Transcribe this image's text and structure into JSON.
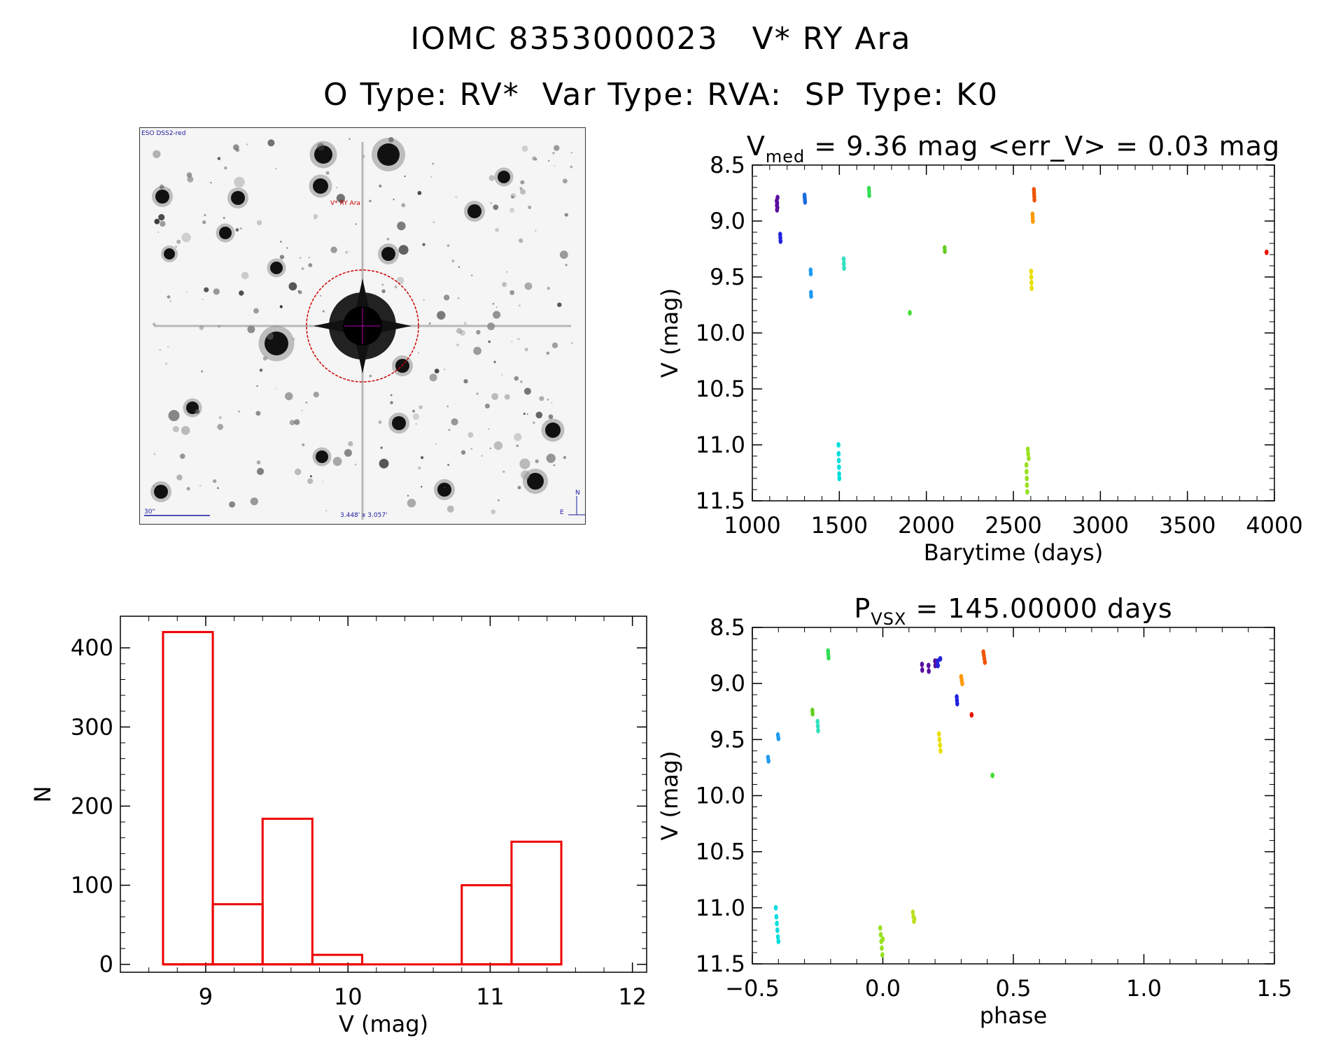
{
  "header": {
    "line1": "IOMC 8353000023   V* RY Ara",
    "line2": "O Type: RV*  Var Type: RVA:  SP Type: K0"
  },
  "finder_chart": {
    "survey_label": "ESO DSS2-red",
    "object_label": "V* RY Ara",
    "scale_label": "30\"",
    "fov_label": "3.448' x 3.057'",
    "north_label": "N",
    "east_label": "E",
    "marker_color": "#cc0000"
  },
  "chart_data": [
    {
      "id": "lightcurve",
      "type": "scatter",
      "title": {
        "symbol": "V",
        "sub": "med",
        "rest": " = 9.36 mag <err_V> = 0.03 mag"
      },
      "xlabel": "Barytime (days)",
      "ylabel": "V (mag)",
      "xlim": [
        1000,
        4000
      ],
      "ylim": [
        11.5,
        8.5
      ],
      "xticks": [
        1000,
        1500,
        2000,
        2500,
        3000,
        3500,
        4000
      ],
      "xtick_labels": [
        "1000",
        "1500",
        "2000",
        "2500",
        "3000",
        "3500",
        "4000"
      ],
      "yticks": [
        8.5,
        9.0,
        9.5,
        10.0,
        10.5,
        11.0,
        11.5
      ],
      "ytick_labels": [
        "8.5",
        "9.0",
        "9.5",
        "10.0",
        "10.5",
        "11.0",
        "11.5"
      ],
      "series": [
        {
          "name": "s1",
          "color": "#5a0fa0",
          "x": [
            1140,
            1141,
            1142,
            1143,
            1144,
            1145
          ],
          "y": [
            8.82,
            8.86,
            8.9,
            8.84,
            8.88,
            8.79
          ]
        },
        {
          "name": "s2",
          "color": "#2222dd",
          "x": [
            1160,
            1161,
            1162
          ],
          "y": [
            9.12,
            9.15,
            9.18
          ]
        },
        {
          "name": "s3",
          "color": "#1a6bdd",
          "x": [
            1300,
            1301,
            1302,
            1303
          ],
          "y": [
            8.77,
            8.79,
            8.81,
            8.83
          ]
        },
        {
          "name": "s4",
          "color": "#1e9bf0",
          "x": [
            1335,
            1336,
            1337,
            1338
          ],
          "y": [
            9.44,
            9.47,
            9.64,
            9.67
          ]
        },
        {
          "name": "s5",
          "color": "#00dddd",
          "x": [
            1495,
            1496,
            1497,
            1498,
            1499,
            1500
          ],
          "y": [
            11.0,
            11.08,
            11.14,
            11.2,
            11.26,
            11.3
          ]
        },
        {
          "name": "s6",
          "color": "#33e0c0",
          "x": [
            1525,
            1526,
            1527
          ],
          "y": [
            9.34,
            9.38,
            9.42
          ]
        },
        {
          "name": "s7",
          "color": "#33dd55",
          "x": [
            1670,
            1671,
            1672
          ],
          "y": [
            8.71,
            8.74,
            8.77
          ]
        },
        {
          "name": "s8",
          "color": "#44dd33",
          "x": [
            1905
          ],
          "y": [
            9.82
          ]
        },
        {
          "name": "s9",
          "color": "#66cc22",
          "x": [
            2105,
            2106
          ],
          "y": [
            9.24,
            9.27
          ]
        },
        {
          "name": "s10",
          "color": "#99e020",
          "x": [
            2575,
            2576,
            2577,
            2578,
            2580,
            2583,
            2585,
            2588
          ],
          "y": [
            11.18,
            11.24,
            11.3,
            11.36,
            11.42,
            11.04,
            11.08,
            11.12
          ]
        },
        {
          "name": "s11",
          "color": "#e8e000",
          "x": [
            2602,
            2603,
            2604,
            2605
          ],
          "y": [
            9.45,
            9.5,
            9.55,
            9.6
          ]
        },
        {
          "name": "s12",
          "color": "#ff9900",
          "x": [
            2610,
            2611,
            2612
          ],
          "y": [
            8.94,
            8.97,
            9.0
          ]
        },
        {
          "name": "s13",
          "color": "#ee5500",
          "x": [
            2618,
            2619,
            2620,
            2621
          ],
          "y": [
            8.72,
            8.75,
            8.78,
            8.81
          ]
        },
        {
          "name": "s14",
          "color": "#ee1100",
          "x": [
            3955
          ],
          "y": [
            9.28
          ]
        }
      ]
    },
    {
      "id": "phased",
      "type": "scatter",
      "title": {
        "symbol": "P",
        "sub": "VSX",
        "rest": " = 145.00000 days"
      },
      "xlabel": "phase",
      "ylabel": "V (mag)",
      "xlim": [
        -0.5,
        1.5
      ],
      "ylim": [
        11.5,
        8.5
      ],
      "xticks": [
        -0.5,
        0.0,
        0.5,
        1.0,
        1.5
      ],
      "xtick_labels": [
        "−0.5",
        "0.0",
        "0.5",
        "1.0",
        "1.5"
      ],
      "yticks": [
        8.5,
        9.0,
        9.5,
        10.0,
        10.5,
        11.0,
        11.5
      ],
      "ytick_labels": [
        "8.5",
        "9.0",
        "9.5",
        "10.0",
        "10.5",
        "11.0",
        "11.5"
      ],
      "series": [
        {
          "name": "s1",
          "color": "#5a0fa0",
          "x": [
            0.15,
            0.151,
            0.175,
            0.176,
            0.2,
            0.201
          ],
          "y": [
            8.83,
            8.88,
            8.84,
            8.89,
            8.8,
            8.84
          ]
        },
        {
          "name": "s2",
          "color": "#2222dd",
          "x": [
            0.283,
            0.284,
            0.285,
            0.21,
            0.211,
            0.22
          ],
          "y": [
            9.12,
            9.15,
            9.18,
            8.8,
            8.84,
            8.78
          ]
        },
        {
          "name": "s4",
          "color": "#1e9bf0",
          "x": [
            -0.44,
            -0.438,
            -0.402,
            -0.4
          ],
          "y": [
            9.66,
            9.69,
            9.46,
            9.49
          ]
        },
        {
          "name": "s5",
          "color": "#00dddd",
          "x": [
            -0.41,
            -0.408,
            -0.406,
            -0.404,
            -0.402,
            -0.4
          ],
          "y": [
            11.0,
            11.08,
            11.14,
            11.2,
            11.26,
            11.3
          ]
        },
        {
          "name": "s6",
          "color": "#33e0c0",
          "x": [
            -0.25,
            -0.249,
            -0.248
          ],
          "y": [
            9.34,
            9.38,
            9.42
          ]
        },
        {
          "name": "s7",
          "color": "#33dd55",
          "x": [
            -0.21,
            -0.209,
            -0.208
          ],
          "y": [
            8.71,
            8.74,
            8.77
          ]
        },
        {
          "name": "s8",
          "color": "#44dd33",
          "x": [
            0.42
          ],
          "y": [
            9.82
          ]
        },
        {
          "name": "s9",
          "color": "#66cc22",
          "x": [
            -0.27,
            -0.269
          ],
          "y": [
            9.24,
            9.27
          ]
        },
        {
          "name": "s10",
          "color": "#99e020",
          "x": [
            -0.01,
            -0.008,
            -0.006,
            -0.004,
            -0.002,
            0.0
          ],
          "y": [
            11.18,
            11.24,
            11.3,
            11.36,
            11.42,
            11.28
          ]
        },
        {
          "name": "s10b",
          "color": "#bbe020",
          "x": [
            0.115,
            0.117,
            0.119,
            0.121
          ],
          "y": [
            11.04,
            11.08,
            11.12,
            11.1
          ]
        },
        {
          "name": "s11",
          "color": "#e8e000",
          "x": [
            0.215,
            0.217,
            0.219,
            0.221
          ],
          "y": [
            9.45,
            9.5,
            9.55,
            9.6
          ]
        },
        {
          "name": "s12",
          "color": "#ff9900",
          "x": [
            0.3,
            0.302,
            0.304
          ],
          "y": [
            8.94,
            8.97,
            9.0
          ]
        },
        {
          "name": "s13",
          "color": "#ee5500",
          "x": [
            0.385,
            0.387,
            0.389,
            0.391
          ],
          "y": [
            8.72,
            8.75,
            8.78,
            8.81
          ]
        },
        {
          "name": "s14",
          "color": "#ee1100",
          "x": [
            0.34
          ],
          "y": [
            9.28
          ]
        }
      ]
    },
    {
      "id": "histogram",
      "type": "bar",
      "xlabel": "V (mag)",
      "ylabel": "N",
      "xlim": [
        8.4,
        12.1
      ],
      "ylim": [
        -10,
        440
      ],
      "xticks": [
        9,
        10,
        11,
        12
      ],
      "xtick_labels": [
        "9",
        "10",
        "11",
        "12"
      ],
      "yticks": [
        0,
        100,
        200,
        300,
        400
      ],
      "ytick_labels": [
        "0",
        "100",
        "200",
        "300",
        "400"
      ],
      "bar_color": "#ee0000",
      "bins": [
        {
          "x0": 8.7,
          "x1": 9.05,
          "value": 420
        },
        {
          "x0": 9.05,
          "x1": 9.4,
          "value": 76
        },
        {
          "x0": 9.4,
          "x1": 9.75,
          "value": 184
        },
        {
          "x0": 9.75,
          "x1": 10.1,
          "value": 12
        },
        {
          "x0": 10.1,
          "x1": 10.45,
          "value": 0
        },
        {
          "x0": 10.45,
          "x1": 10.8,
          "value": 0
        },
        {
          "x0": 10.8,
          "x1": 11.15,
          "value": 100
        },
        {
          "x0": 11.15,
          "x1": 11.5,
          "value": 155
        }
      ]
    }
  ]
}
